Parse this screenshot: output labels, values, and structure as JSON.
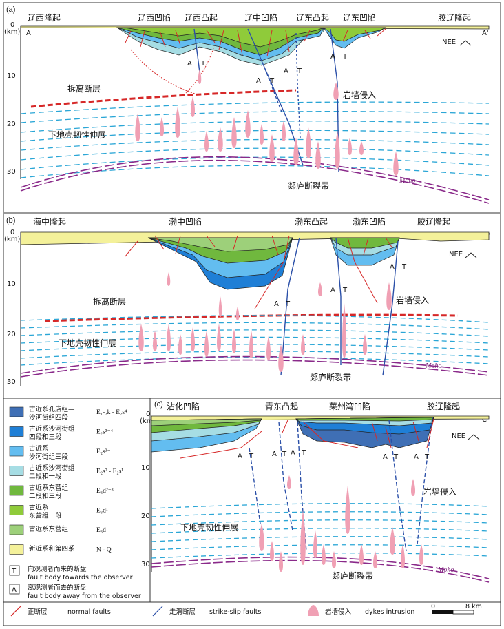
{
  "panels": {
    "a": {
      "letter": "(a)",
      "top_labels": [
        "辽西隆起",
        "辽西凹陷",
        "辽西凸起",
        "辽中凹陷",
        "辽东凸起",
        "辽东凹陷",
        "胶辽隆起"
      ],
      "depth_unit": "(km)",
      "depth_ticks": [
        "0",
        "10",
        "20",
        "30"
      ],
      "section_start": "A",
      "section_end": "A'",
      "nee": "NEE",
      "detachment": "拆离断层",
      "lower_crust": "下地壳韧性伸展",
      "dyke": "岩墙侵入",
      "fault_zone": "郯庐断裂带",
      "moho": "Moho"
    },
    "b": {
      "letter": "(b)",
      "top_labels": [
        "海中隆起",
        "渤中凹陷",
        "渤东凸起",
        "渤东凹陷",
        "胶辽隆起"
      ],
      "depth_unit": "(km)",
      "depth_ticks": [
        "0",
        "10",
        "20",
        "30"
      ],
      "section_start": "B",
      "section_end": "B'",
      "nee": "NEE",
      "detachment": "拆离断层",
      "lower_crust": "下地壳韧性伸展",
      "dyke": "岩墙侵入",
      "fault_zone": "郯庐断裂带",
      "moho": "Moho"
    },
    "c": {
      "letter": "(c)",
      "top_labels": [
        "沾化凹陷",
        "青东凸起",
        "莱州湾凹陷",
        "胶辽隆起"
      ],
      "depth_unit": "(km)",
      "depth_ticks": [
        "0",
        "10",
        "20",
        "30"
      ],
      "section_start": "C",
      "section_end": "C'",
      "nee": "NEE",
      "lower_crust": "下地壳韧性伸展",
      "dyke": "岩墙侵入",
      "fault_zone": "郯庐断裂带",
      "moho": "Moho"
    }
  },
  "at_label": {
    "a": "A",
    "t": "T"
  },
  "legend": [
    {
      "zh": [
        "古近系孔店组—",
        "沙河街组四段"
      ],
      "code": "E₁-₂k - E₂s⁴",
      "color": "#3f6fb5"
    },
    {
      "zh": [
        "古近系沙河街组",
        "四段和三段"
      ],
      "code": "E₂s³⁻⁴",
      "color": "#1f7fd6"
    },
    {
      "zh": [
        "古近系",
        "沙河街组三段"
      ],
      "code": "E₂s³⁻",
      "color": "#63bdf0"
    },
    {
      "zh": [
        "古近系沙河街组",
        "二段和一段"
      ],
      "code": "E₂s² - E₂s¹",
      "color": "#a6dde4"
    },
    {
      "zh": [
        "古近系东营组",
        "二段和三段"
      ],
      "code": "E₃d²⁻³",
      "color": "#70b83e"
    },
    {
      "zh": [
        "古近系",
        "东营组一段"
      ],
      "code": "E₃d¹",
      "color": "#8fcb3a"
    },
    {
      "zh": [
        "古近系东营组"
      ],
      "code": "E₃d",
      "color": "#9dd07a"
    },
    {
      "zh": [
        "新近系和第四系"
      ],
      "code": "N - Q",
      "color": "#f4f19a"
    }
  ],
  "legend_symbols": [
    {
      "mark": "T",
      "zh": "向观测者而来的断盘",
      "en": "fault body towards the observer"
    },
    {
      "mark": "A",
      "zh": "离观测者而去的断盘",
      "en": "fault body away from the observer"
    }
  ],
  "bottom_legend": {
    "normal_zh": "正断层",
    "normal_en": "normal faults",
    "strike_zh": "走滑断层",
    "strike_en": "strike-slip faults",
    "dyke_zh": "岩墙侵入",
    "dyke_en": "dykes intrusion"
  },
  "scale_bar": {
    "start": "0",
    "end": "8 km"
  },
  "colors": {
    "nq": "#f4f19a",
    "ed": "#9dd07a",
    "ed1": "#8fcb3a",
    "ed23": "#70b83e",
    "es12": "#a6dde4",
    "es3": "#63bdf0",
    "es34": "#1f7fd6",
    "ek": "#3f6fb5",
    "dyke": "#f0a0b4",
    "normal_fault": "#d62828",
    "strike_fault": "#2a4fa8",
    "lower_crust": "#2aa6d6",
    "moho": "#8a2a8a",
    "detachment": "#d62828"
  }
}
